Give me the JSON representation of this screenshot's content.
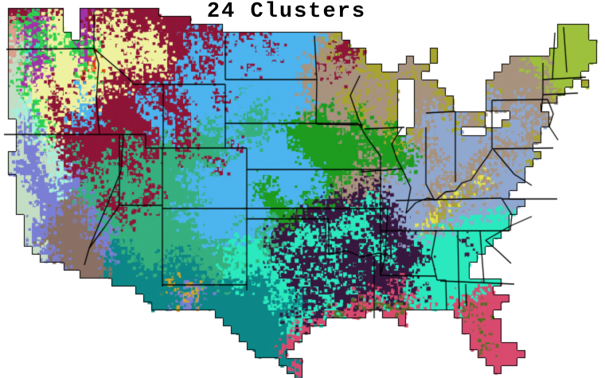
{
  "title": "24 Clusters",
  "colors": {
    "background": "#FFFFFF",
    "border": "#000000",
    "title_color": "#000000"
  },
  "map": {
    "cell_size": 10,
    "cols": 76,
    "rows": 48,
    "palette": {
      ".": "#FFFFFF",
      "A": "#4DB4EE",
      "B": "#8E1537",
      "C": "#EEF2A0",
      "D": "#36B07E",
      "E": "#1E9C20",
      "G": "#2BE9BE",
      "H": "#0D8787",
      "I": "#38183F",
      "J": "#90A8D0",
      "K": "#A8937F",
      "L": "#A8A52F",
      "M": "#9EC13D",
      "N": "#D94A6F",
      "O": "#A233A8",
      "P": "#DD9E8C",
      "Q": "#E2440E",
      "R": "#2ED14E",
      "S": "#7B7FD4",
      "T": "#C4DEC6",
      "U": "#A6EFDC",
      "V": "#8A7164",
      "W": "#D2A52E",
      "X": "#50701F",
      "Y": "#E3E34A"
    },
    "grid_rle": [
      "76.",
      "1.3B1R1B1C1B2.1O3B1C5B",
      "1.1P2R2O2C2.1O1B1C1B2C8B",
      "1.1P1R2O1R2C2.1O1B2C1B1C3B1C6B1A1B42.4M",
      "1.1P1T2O1R2C1R1.1O2C1B2C1B3C3B2A3B2A2B8A2K1L27.4M",
      "1.1P1T1R1O1R2C2R1O1R4C1B3C4B2A2B5A1B6A1K1L1M1B26.5M",
      "1.1P1T1G1O1R3C1R1O1R9C3B2A2B6A1B5A2K3B1L8.1L14.6M",
      "1.1P1T1R2O1R3C1O1Q5C1B3C2B2A2B12A1K1K1L2B1K1L5.1K2.1L9.2K2M1K6M",
      "1.2T1R2O4C1R1Q3C1B2C1B2C1B2A2B2A3A1B4A2A2K1B3K2K2L2.3K1L9.4K7M",
      "1.1T1R1O7C1R2C3B1C5B2A2B1A8A2A2K2K1B1K3K1L1L2K2L9.6K5M",
      "1.1T1R1O2C1B2C1B3C9B16A2K9K1L2.2K1L6.1L7K3M1.1L",
      "1.2T1R3C1B2C1A2C2B1C3B2A1B8A1D7A2K3K1L2K1L1K1K1L2.3K1L5.1J8K1M",
      "1.2T1U2C1B5C5B2A4B4A2B10A1K3K1L1L3K1K1L2.4K1L4.1J3K1J3K1L",
      "1.1T2U1R1C2B2C2A6B2A4B8A1D6A1K1E3K1L1E2K1K1L2.2K1J1K1L4.2J2K1J2K",
      "1.1T1U1S1R2C2B3A6B3A3B7A2D5A1K2E3K1E1L2K1K1L2.1K6J1K1L3.1K1J1K1J1K",
      "2.1T1S1U1R1C2B1A1B1A7B3A2B2A1D3A3D2A7E2K2E2K1L1E2.1K5J2K1L2.1L2J1K1J1K",
      "2.1T1S2U2C6B1D5B2A2B1D1A2D2A3D3A4E3E1K3E1K1L1E1.1L2K3J1L3.5J1K1J",
      "2.1T2S1U1R9B1D3B1D1A2B4D3A2D3A15E1J1K3J7J1K2J1K1L",
      "2.1T2S1T1U2B1D6B2D2B2D2B4D1D1B7A8E1K4E1L1E3K1J5J1K1J2K2J",
      "1.2T2S1T2U5B1D2B2D2B3D1B4D10A6E1E2K5E1J2K1J4J2K1J2K2J1L",
      "1.1T3S1T2U2B1D2B2D2B9D1B1D11A13E2J2K3J2K2J1K2J1L",
      "1.1T3S2T1U1S2B1D1B3D2B7D2A1B12A5E4K2E7J3K5J",
      "2.1T3S1T1U2S1B6D1B4D1A1D9A1E6A3E1K2K1I1K7J3K1J1K1Y1K4J",
      "2.2T3S1U2S14D8A2E7A1E3K2I1K6J2K2J1K1L1Y1K3J",
      "2.2T5S1V3D2B3D2B5D7A3E3A1E2A1E1I2K1I1G2I1J4J3K1Y1L1K4J",
      "2.3T3S2V1S2D2B2D2B7D7A3E2A3E5I2G1I1J3J2K1Y1L1K8J",
      "2.3T2S3V2S2D2B5D1A2D10A4E2I4I1G1I2G2I4J1K1L7J1G1J",
      "3.2T2S4V1S3D1B7D5A2A1D3A1D2E3I1G2I1G2G2I1I1J1I3J1Y1L3J5G",
      "3.1T2S5V2S7D4D9A2D1I2I1G2I3G2G4I3J1Y1K2J7G",
      "3.1T2S6V2S11D3A4A2D3I3G1I2G2I2G3I1I3J9G",
      "3.1T1S7V2S1H11D1A2D4G2D2I3G1G3I2I2G4I4G2G1I3G",
      "4.1T2S6V1S2H4D2D1H5D5G1D1I1G2G2I2I1G1I3I1G1G1I3I3G5G",
      "5.1T2S5V1S3H3D1H1D2H4D1G1D4G2I1G4I2G2I1G2I1G1I4I2G4G",
      "8.5V5H3D4H4D6G4I2G7I1I1G2I7G",
      "10.3V13H2D4G1H2G2I1G4I1G2I1G2I4I4G3G",
      "14.6H1H1W5H1D2H1G3H2G2I1G2I2G1I4I1I1N1I12G",
      "17.3H3H1S1W1S2H7H2G2I1G4I1G2I1N2I1N1G1I3G4G2N",
      "18.2H2H1S1W1S3H6H2G1G1H2I2G2I1I1N1I2G1I1I1N4G2G6N",
      "19.4H1S10H1G1H2H3I2G1I1N1X1N1X1N2X1N2G1N2G2N1X3N",
      "27.1H8H1I3G1I1N1X3N2.2N1N6.1N1X3N",
      "28.7H1G2G1I2N9.1N7.2N1X2N",
      "29.7H1G2N19.5N",
      "30.6H2N21.4N",
      "31.5H1N22.2N1X3N",
      "32.3H1N24.6N",
      "35.2H1N23.4N",
      "36.1H1N24.1N",
      "37.1N"
    ],
    "state_borders": [
      [
        8,
        62,
        118,
        61
      ],
      [
        118,
        14,
        118,
        61
      ],
      [
        118,
        61,
        124,
        80,
        121,
        125,
        125,
        168
      ],
      [
        118,
        61,
        140,
        80,
        160,
        97,
        168,
        106
      ],
      [
        168,
        106,
        283,
        106
      ],
      [
        5,
        169,
        122,
        169
      ],
      [
        122,
        169,
        183,
        169
      ],
      [
        183,
        169,
        183,
        186
      ],
      [
        150,
        169,
        150,
        258
      ],
      [
        150,
        258,
        204,
        258
      ],
      [
        204,
        258,
        204,
        360
      ],
      [
        204,
        186,
        204,
        258
      ],
      [
        205,
        106,
        205,
        186
      ],
      [
        183,
        186,
        310,
        186
      ],
      [
        283,
        106,
        283,
        186
      ],
      [
        283,
        45,
        283,
        100
      ],
      [
        283,
        100,
        398,
        100
      ],
      [
        283,
        155,
        450,
        155
      ],
      [
        310,
        186,
        310,
        262
      ],
      [
        310,
        213,
        478,
        213
      ],
      [
        204,
        262,
        487,
        262
      ],
      [
        310,
        275,
        413,
        275
      ],
      [
        310,
        262,
        310,
        365
      ],
      [
        204,
        358,
        310,
        358
      ],
      [
        413,
        275,
        413,
        320
      ],
      [
        413,
        320,
        435,
        315,
        455,
        323,
        475,
        318,
        492,
        322
      ],
      [
        487,
        262,
        484,
        322,
        478,
        346
      ],
      [
        478,
        213,
        478,
        262
      ],
      [
        478,
        262,
        478,
        290
      ],
      [
        478,
        290,
        548,
        290
      ],
      [
        478,
        290,
        478,
        346
      ],
      [
        478,
        346,
        548,
        347
      ],
      [
        470,
        322,
        470,
        400
      ],
      [
        548,
        290,
        542,
        322,
        549,
        352
      ],
      [
        549,
        352,
        560,
        352
      ],
      [
        560,
        352,
        561,
        390
      ],
      [
        575,
        290,
        577,
        388
      ],
      [
        603,
        290,
        608,
        356
      ],
      [
        545,
        290,
        640,
        290
      ],
      [
        497,
        252,
        630,
        249
      ],
      [
        630,
        249,
        643,
        270,
        641,
        290
      ],
      [
        630,
        250,
        700,
        250
      ],
      [
        610,
        302,
        641,
        284,
        668,
        272
      ],
      [
        610,
        302,
        626,
        316,
        642,
        331
      ],
      [
        553,
        353,
        646,
        357
      ],
      [
        585,
        357,
        586,
        385
      ],
      [
        510,
        268,
        522,
        255,
        537,
        249,
        548,
        251,
        560,
        241,
        572,
        240,
        580,
        230,
        592,
        226,
        602,
        211,
        613,
        196,
        618,
        187
      ],
      [
        572,
        140,
        572,
        229
      ],
      [
        535,
        160,
        535,
        231,
        546,
        252
      ],
      [
        458,
        162,
        508,
        160
      ],
      [
        398,
        156,
        456,
        157
      ],
      [
        395,
        45,
        398,
        100
      ],
      [
        398,
        100,
        397,
        156
      ],
      [
        455,
        216,
        505,
        212
      ],
      [
        505,
        160,
        492,
        181,
        499,
        201,
        505,
        212
      ],
      [
        505,
        212,
        516,
        236,
        510,
        268
      ],
      [
        450,
        155,
        463,
        176,
        478,
        196,
        478,
        213
      ],
      [
        452,
        95,
        440,
        120,
        448,
        143,
        455,
        161
      ],
      [
        535,
        142,
        572,
        140
      ],
      [
        618,
        126,
        618,
        186
      ],
      [
        618,
        126,
        688,
        125
      ],
      [
        618,
        187,
        695,
        186
      ],
      [
        688,
        125,
        695,
        143,
        690,
        159,
        701,
        176
      ],
      [
        620,
        188,
        646,
        219,
        668,
        233
      ],
      [
        682,
        79,
        682,
        119
      ],
      [
        697,
        41,
        694,
        99
      ],
      [
        708,
        34,
        712,
        91
      ],
      [
        682,
        100,
        736,
        97
      ],
      [
        682,
        119,
        726,
        117
      ],
      [
        682,
        119,
        680,
        141
      ],
      [
        150,
        258,
        131,
        286,
        112,
        312
      ],
      [
        155,
        169,
        152,
        215
      ],
      [
        152,
        215,
        112,
        312
      ],
      [
        112,
        312,
        106,
        333
      ]
    ]
  }
}
